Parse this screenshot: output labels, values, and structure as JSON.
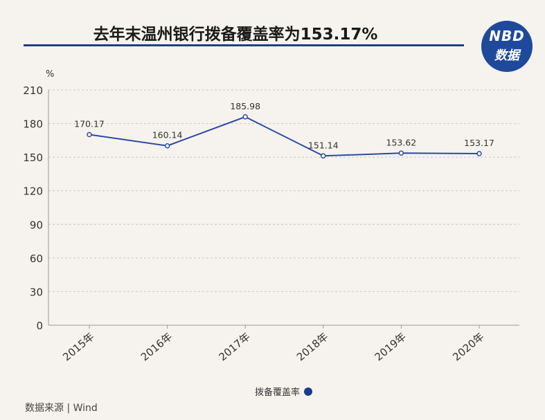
{
  "title": "去年末温州银行拨备覆盖率为153.17%",
  "logo": {
    "line1": "NBD",
    "line2": "数据"
  },
  "source": "数据来源 | Wind",
  "chart_data": {
    "type": "line",
    "unit": "%",
    "categories": [
      "2015年",
      "2016年",
      "2017年",
      "2018年",
      "2019年",
      "2020年"
    ],
    "series": [
      {
        "name": "拨备覆盖率",
        "values": [
          170.17,
          160.14,
          185.98,
          151.14,
          153.62,
          153.17
        ],
        "color": "#2c4aa6"
      }
    ],
    "y_ticks": [
      0,
      30,
      60,
      90,
      120,
      150,
      180,
      210
    ],
    "ylim": [
      0,
      210
    ],
    "grid": true,
    "legend_position": "bottom-center",
    "data_labels": [
      "170.17",
      "160.14",
      "185.98",
      "151.14",
      "153.62",
      "153.17"
    ]
  }
}
